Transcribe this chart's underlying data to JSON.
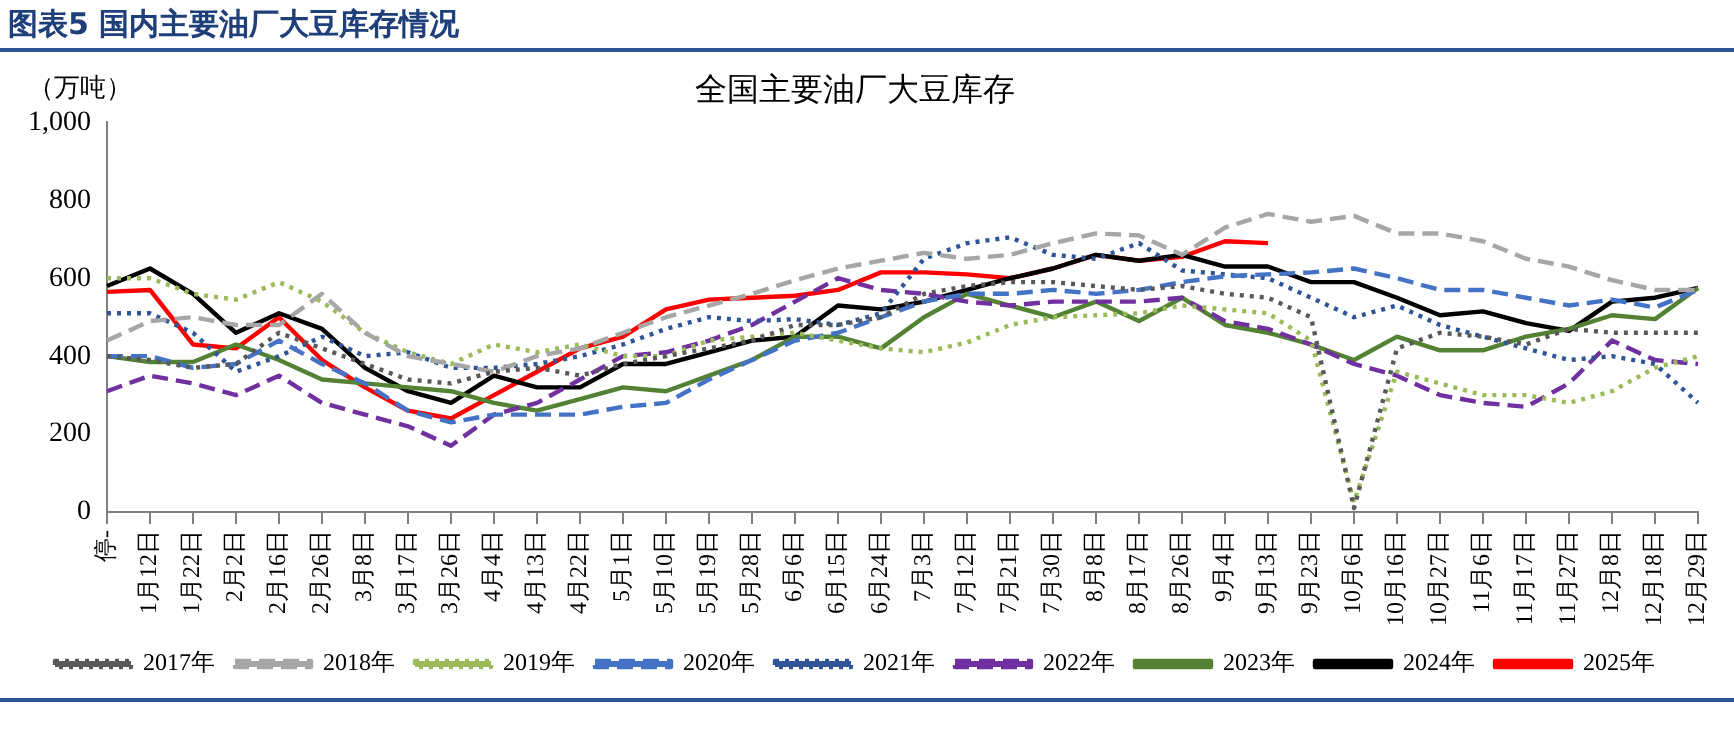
{
  "chart_data": {
    "type": "line",
    "title": "图表5  国内主要油厂大豆库存情况",
    "subtitle": "全国主要油厂大豆库存",
    "ylabel": "（万吨）",
    "categories": [
      "停-",
      "1月12日",
      "1月22日",
      "2月2日",
      "2月16日",
      "2月26日",
      "3月8日",
      "3月17日",
      "3月26日",
      "4月4日",
      "4月13日",
      "4月22日",
      "5月1日",
      "5月10日",
      "5月19日",
      "5月28日",
      "6月6日",
      "6月15日",
      "6月24日",
      "7月3日",
      "7月12日",
      "7月21日",
      "7月30日",
      "8月8日",
      "8月17日",
      "8月26日",
      "9月4日",
      "9月13日",
      "9月23日",
      "10月6日",
      "10月16日",
      "10月27日",
      "11月6日",
      "11月17日",
      "11月27日",
      "12月8日",
      "12月18日",
      "12月29日"
    ],
    "ylim": [
      0,
      1000
    ],
    "yticks": [
      0,
      200,
      400,
      600,
      800,
      {
        "value": 1000,
        "label": "1,000"
      }
    ],
    "grid": false,
    "legend": "bottom",
    "marker": "none",
    "series": [
      {
        "name": "2017年",
        "color": "#595959",
        "line_style": "dotted",
        "values": [
          400,
          390,
          370,
          380,
          460,
          420,
          380,
          340,
          330,
          360,
          370,
          350,
          380,
          400,
          420,
          440,
          480,
          480,
          500,
          560,
          580,
          590,
          590,
          580,
          570,
          580,
          560,
          550,
          500,
          10,
          420,
          460,
          450,
          430,
          470,
          460,
          460,
          460
        ]
      },
      {
        "name": "2018年",
        "color": "#a6a6a6",
        "line_style": "dashed",
        "values": [
          440,
          490,
          500,
          480,
          480,
          560,
          460,
          400,
          380,
          360,
          400,
          420,
          460,
          500,
          530,
          560,
          595,
          625,
          645,
          665,
          650,
          660,
          690,
          715,
          710,
          660,
          730,
          765,
          745,
          760,
          715,
          715,
          695,
          650,
          630,
          595,
          570,
          570
        ]
      },
      {
        "name": "2019年",
        "color": "#9bbb59",
        "line_style": "dotted",
        "values": [
          600,
          600,
          560,
          545,
          590,
          540,
          460,
          410,
          380,
          430,
          410,
          430,
          400,
          400,
          440,
          450,
          460,
          440,
          420,
          410,
          435,
          480,
          500,
          505,
          510,
          530,
          520,
          510,
          440,
          25,
          360,
          330,
          300,
          300,
          280,
          310,
          370,
          400
        ]
      },
      {
        "name": "2020年",
        "color": "#4472c4",
        "line_style": "dashed",
        "values": [
          400,
          400,
          370,
          380,
          440,
          380,
          330,
          260,
          230,
          250,
          250,
          250,
          270,
          280,
          340,
          390,
          440,
          460,
          500,
          540,
          560,
          560,
          570,
          560,
          570,
          590,
          605,
          610,
          615,
          625,
          600,
          570,
          570,
          550,
          530,
          545,
          525,
          570
        ]
      },
      {
        "name": "2021年",
        "color": "#2f5597",
        "line_style": "dotted",
        "values": [
          510,
          510,
          460,
          360,
          400,
          450,
          400,
          410,
          370,
          370,
          380,
          400,
          430,
          470,
          500,
          490,
          495,
          480,
          510,
          650,
          690,
          705,
          660,
          650,
          690,
          620,
          610,
          600,
          550,
          500,
          530,
          480,
          450,
          420,
          390,
          400,
          380,
          280
        ]
      },
      {
        "name": "2022年",
        "color": "#7030a0",
        "line_style": "dashed",
        "values": [
          310,
          350,
          330,
          300,
          350,
          280,
          250,
          220,
          170,
          250,
          280,
          340,
          400,
          410,
          440,
          480,
          540,
          600,
          570,
          560,
          540,
          530,
          540,
          540,
          540,
          550,
          490,
          470,
          430,
          380,
          350,
          300,
          280,
          270,
          330,
          440,
          390,
          380
        ]
      },
      {
        "name": "2023年",
        "color": "#548235",
        "line_style": "solid",
        "values": [
          400,
          385,
          385,
          430,
          390,
          340,
          330,
          320,
          310,
          280,
          260,
          290,
          320,
          310,
          350,
          390,
          450,
          450,
          420,
          500,
          560,
          530,
          500,
          540,
          490,
          550,
          480,
          460,
          430,
          390,
          450,
          415,
          415,
          450,
          470,
          505,
          495,
          575
        ]
      },
      {
        "name": "2024年",
        "color": "#000000",
        "line_style": "solid",
        "values": [
          580,
          625,
          560,
          460,
          510,
          470,
          370,
          310,
          280,
          350,
          320,
          320,
          380,
          380,
          410,
          440,
          450,
          530,
          520,
          540,
          570,
          600,
          625,
          660,
          645,
          660,
          630,
          630,
          590,
          590,
          550,
          505,
          515,
          485,
          465,
          540,
          550,
          575
        ]
      },
      {
        "name": "2025年",
        "color": "#ff0000",
        "line_style": "solid",
        "values": [
          565,
          570,
          430,
          420,
          500,
          390,
          320,
          260,
          240,
          300,
          360,
          420,
          450,
          520,
          545,
          550,
          555,
          570,
          615,
          615,
          610,
          600,
          625,
          660,
          645,
          655,
          695,
          690,
          null,
          null,
          null,
          null,
          null,
          null,
          null,
          null,
          null,
          null
        ]
      }
    ]
  }
}
